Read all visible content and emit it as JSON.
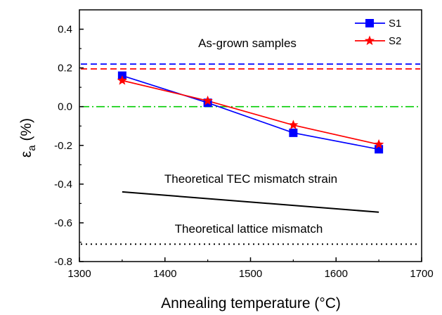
{
  "chart_data": {
    "type": "line",
    "xlabel": "Annealing temperature (°C)",
    "ylabel_symbol": "ε",
    "ylabel_sub": "a",
    "ylabel_unit": " (%)",
    "xlim": [
      1300,
      1700
    ],
    "ylim": [
      -0.8,
      0.5
    ],
    "x_ticks": [
      1300,
      1400,
      1500,
      1600,
      1700
    ],
    "x_tick_labels": [
      "1300",
      "1400",
      "1500",
      "1600",
      "1700"
    ],
    "y_ticks": [
      0.4,
      0.2,
      0.0,
      -0.2,
      -0.4,
      -0.6,
      -0.8
    ],
    "y_tick_labels": [
      "0.4",
      "0.2",
      "0.0",
      "-0.2",
      "-0.4",
      "-0.6",
      "-0.8"
    ],
    "grid": false,
    "legend_position": "top-right",
    "series": [
      {
        "name": "S1",
        "color": "#0000ff",
        "marker": "square",
        "x": [
          1350,
          1450,
          1550,
          1650
        ],
        "y": [
          0.16,
          0.02,
          -0.135,
          -0.22
        ]
      },
      {
        "name": "S2",
        "color": "#ff0000",
        "marker": "star",
        "x": [
          1350,
          1450,
          1550,
          1650
        ],
        "y": [
          0.135,
          0.03,
          -0.095,
          -0.195
        ]
      }
    ],
    "reference_lines": [
      {
        "y": 0.22,
        "color": "#0000ff",
        "style": "dashed"
      },
      {
        "y": 0.195,
        "color": "#ff0000",
        "style": "dashed"
      },
      {
        "y": 0.0,
        "color": "#00cc00",
        "style": "dash-dot"
      },
      {
        "y": -0.71,
        "color": "#000000",
        "style": "dotted"
      }
    ],
    "tec_mismatch_line": {
      "color": "#000000",
      "x": [
        1350,
        1650
      ],
      "y": [
        -0.44,
        -0.545
      ]
    },
    "annotations": {
      "as_grown": "As-grown samples",
      "tec": "Theoretical TEC mismatch strain",
      "lattice": "Theoretical lattice mismatch"
    }
  }
}
